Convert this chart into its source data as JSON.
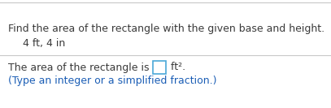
{
  "line1": "Find the area of the rectangle with the given base and height.",
  "line2": "4 ft, 4 in",
  "line3_before": "The area of the rectangle is ",
  "line3_unit": " ft².",
  "line4": "(Type an integer or a simplified fraction.)",
  "bg_color": "#ffffff",
  "text_color_dark": "#3a3a3a",
  "text_color_blue": "#1a5db5",
  "font_size_main": 9.0,
  "divider_color": "#c8c8c8",
  "box_color": "#4aa8d8"
}
